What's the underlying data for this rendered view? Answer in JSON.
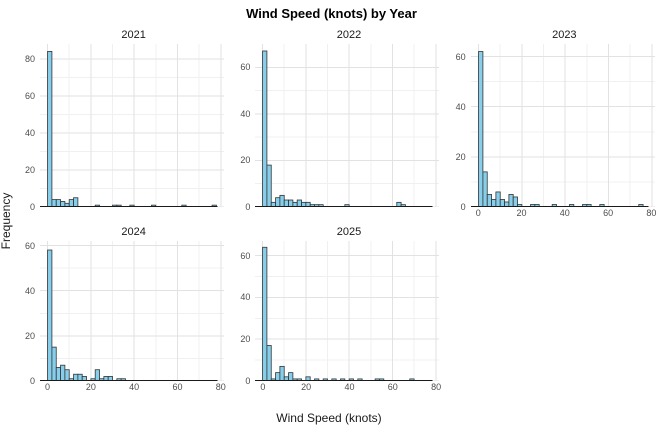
{
  "chart_data": {
    "type": "bar",
    "subtype": "faceted_histogram",
    "title": "Wind Speed (knots) by Year",
    "xlabel": "Wind Speed (knots)",
    "ylabel": "Frequency",
    "bin_width": 2,
    "x_ticks": [
      0,
      20,
      40,
      60,
      80
    ],
    "xlim": [
      -3.5,
      81.5
    ],
    "grid": true,
    "legend": "none",
    "colors": {
      "bar_fill": "#87CEEB",
      "bar_stroke": "#333333",
      "grid_major": "#E2E2E2",
      "grid_minor": "#F0F0F0",
      "axis_line": "#1A1A1A",
      "axis_text": "#4D4D4D",
      "facet_label": "#1A1A1A",
      "background": "#FFFFFF"
    },
    "facets": [
      {
        "label": "2021",
        "y_ticks": [
          0,
          20,
          40,
          60,
          80
        ],
        "ymax": 88,
        "show_x_labels": false,
        "bins": [
          [
            0,
            84
          ],
          [
            2,
            4
          ],
          [
            4,
            4
          ],
          [
            6,
            3
          ],
          [
            8,
            2
          ],
          [
            10,
            4
          ],
          [
            12,
            5
          ],
          [
            22,
            1
          ],
          [
            30,
            1
          ],
          [
            32,
            1
          ],
          [
            38,
            1
          ],
          [
            48,
            1
          ],
          [
            62,
            1
          ],
          [
            76,
            1
          ]
        ]
      },
      {
        "label": "2022",
        "y_ticks": [
          0,
          20,
          40,
          60
        ],
        "ymax": 70,
        "show_x_labels": false,
        "bins": [
          [
            0,
            67
          ],
          [
            2,
            18
          ],
          [
            4,
            2
          ],
          [
            6,
            4
          ],
          [
            8,
            5
          ],
          [
            10,
            3
          ],
          [
            12,
            3
          ],
          [
            14,
            2
          ],
          [
            16,
            3
          ],
          [
            18,
            2
          ],
          [
            20,
            2
          ],
          [
            22,
            1
          ],
          [
            24,
            1
          ],
          [
            26,
            1
          ],
          [
            38,
            1
          ],
          [
            62,
            2
          ],
          [
            64,
            1
          ]
        ]
      },
      {
        "label": "2023",
        "y_ticks": [
          0,
          20,
          40,
          60
        ],
        "ymax": 65,
        "show_x_labels": true,
        "bins": [
          [
            0,
            62
          ],
          [
            2,
            14
          ],
          [
            4,
            5
          ],
          [
            6,
            3
          ],
          [
            8,
            6
          ],
          [
            10,
            3
          ],
          [
            12,
            2
          ],
          [
            14,
            5
          ],
          [
            16,
            4
          ],
          [
            18,
            1
          ],
          [
            24,
            1
          ],
          [
            26,
            1
          ],
          [
            34,
            1
          ],
          [
            42,
            1
          ],
          [
            48,
            1
          ],
          [
            50,
            1
          ],
          [
            56,
            1
          ],
          [
            74,
            1
          ]
        ]
      },
      {
        "label": "2024",
        "y_ticks": [
          0,
          20,
          40,
          60
        ],
        "ymax": 62,
        "show_x_labels": true,
        "bins": [
          [
            0,
            58
          ],
          [
            2,
            15
          ],
          [
            4,
            6
          ],
          [
            6,
            7
          ],
          [
            8,
            5
          ],
          [
            10,
            1
          ],
          [
            12,
            3
          ],
          [
            14,
            3
          ],
          [
            16,
            2
          ],
          [
            20,
            1
          ],
          [
            22,
            5
          ],
          [
            24,
            1
          ],
          [
            26,
            2
          ],
          [
            28,
            2
          ],
          [
            32,
            1
          ],
          [
            34,
            1
          ]
        ]
      },
      {
        "label": "2025",
        "y_ticks": [
          0,
          20,
          40,
          60
        ],
        "ymax": 67,
        "show_x_labels": true,
        "bins": [
          [
            0,
            64
          ],
          [
            2,
            17
          ],
          [
            4,
            1
          ],
          [
            6,
            4
          ],
          [
            8,
            7
          ],
          [
            10,
            2
          ],
          [
            12,
            4
          ],
          [
            14,
            1
          ],
          [
            16,
            1
          ],
          [
            20,
            2
          ],
          [
            24,
            1
          ],
          [
            28,
            1
          ],
          [
            32,
            1
          ],
          [
            36,
            1
          ],
          [
            40,
            1
          ],
          [
            44,
            1
          ],
          [
            52,
            1
          ],
          [
            54,
            1
          ],
          [
            68,
            1
          ]
        ]
      }
    ]
  }
}
